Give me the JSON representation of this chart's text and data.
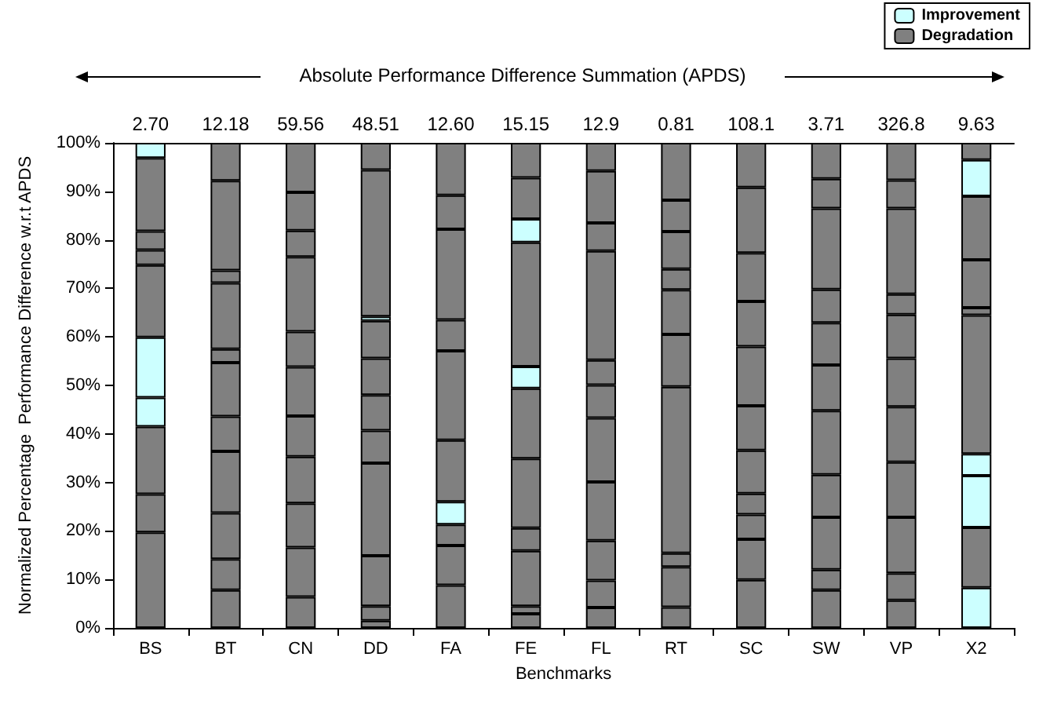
{
  "chart_data": {
    "type": "bar",
    "stacked": true,
    "xlabel": "Benchmarks",
    "ylabel": "Normalized Percentage  Performance Difference w.r.t APDS",
    "categories": [
      "BS",
      "BT",
      "CN",
      "DD",
      "FA",
      "FE",
      "FL",
      "RT",
      "SC",
      "SW",
      "VP",
      "X2"
    ],
    "ylim": [
      0,
      100
    ],
    "yticks": [
      {
        "value": 0,
        "label": "0%"
      },
      {
        "value": 10,
        "label": "10%"
      },
      {
        "value": 20,
        "label": "20%"
      },
      {
        "value": 30,
        "label": "30%"
      },
      {
        "value": 40,
        "label": "40%"
      },
      {
        "value": 50,
        "label": "50%"
      },
      {
        "value": 60,
        "label": "60%"
      },
      {
        "value": 70,
        "label": "70%"
      },
      {
        "value": 80,
        "label": "80%"
      },
      {
        "value": 90,
        "label": "90%"
      },
      {
        "value": 100,
        "label": "100%"
      }
    ],
    "grid": false,
    "legend": "top right",
    "annotations": [
      "Absolute Performance Difference Summation (APDS)",
      "2.70",
      "12.18",
      "59.56",
      "48.51",
      "12.60",
      "15.15",
      "12.9",
      "0.81",
      "108.1",
      "3.71",
      "326.8",
      "9.63"
    ],
    "series": [
      {
        "name": "Improvement",
        "color": "#ccffff",
        "values": [
          null,
          null,
          null,
          null,
          null,
          null,
          null,
          null,
          null,
          null,
          null,
          8.3
        ]
      },
      {
        "name": "Degradation",
        "color": "#808080",
        "values": [
          19.7,
          7.8,
          6.4,
          1.5,
          8.8,
          2.9,
          4.2,
          4.3,
          9.9,
          7.8,
          5.7,
          null
        ]
      },
      {
        "color": "#808080",
        "values": [
          7.9,
          6.4,
          10.2,
          3.0,
          8.2,
          1.6,
          5.6,
          8.3,
          8.4,
          4.2,
          5.6,
          12.4
        ]
      },
      {
        "color": "#808080",
        "values": [
          13.9,
          9.5,
          9.1,
          10.4,
          4.3,
          11.4,
          8.2,
          2.8,
          5.1,
          10.8,
          11.5,
          null
        ]
      },
      {
        "color": "#ccffff",
        "values": [
          null,
          null,
          null,
          null,
          null,
          null,
          null,
          null,
          null,
          null,
          null,
          10.7
        ]
      },
      {
        "color": "#808080",
        "values": [
          null,
          12.7,
          9.6,
          19.1,
          null,
          4.7,
          12.1,
          34.3,
          4.3,
          8.8,
          11.4,
          null
        ]
      },
      {
        "color": "#ccffff",
        "values": [
          6.0,
          null,
          null,
          null,
          4.7,
          null,
          null,
          null,
          null,
          null,
          null,
          4.5
        ]
      },
      {
        "color": "#808080",
        "values": [
          null,
          7.2,
          8.4,
          6.7,
          12.7,
          14.3,
          13.2,
          10.8,
          8.9,
          13.2,
          11.4,
          28.6
        ]
      },
      {
        "color": "#ccffff",
        "values": [
          12.4,
          null,
          null,
          null,
          null,
          null,
          null,
          null,
          null,
          null,
          null,
          null
        ]
      },
      {
        "color": "#808080",
        "values": [
          14.9,
          11.1,
          10.1,
          7.3,
          18.4,
          14.5,
          6.8,
          9.2,
          9.2,
          9.4,
          10.0,
          1.5
        ]
      },
      {
        "color": "#808080",
        "values": [
          3.1,
          2.8,
          7.3,
          7.6,
          6.4,
          null,
          5.1,
          4.3,
          12.2,
          8.7,
          9.0,
          9.9
        ]
      },
      {
        "color": "#ccffff",
        "values": [
          null,
          null,
          null,
          null,
          null,
          4.5,
          null,
          null,
          null,
          null,
          null,
          null
        ]
      },
      {
        "color": "#808080",
        "values": [
          3.9,
          13.6,
          15.4,
          7.7,
          18.7,
          25.6,
          22.5,
          7.7,
          9.3,
          6.9,
          4.2,
          13.1
        ]
      },
      {
        "color": "#808080",
        "values": [
          15.1,
          2.6,
          5.4,
          null,
          7.0,
          null,
          5.8,
          null,
          10.0,
          16.7,
          17.7,
          null
        ]
      },
      {
        "color": "#ccffff",
        "values": [
          null,
          null,
          null,
          0.9,
          null,
          4.8,
          null,
          null,
          null,
          null,
          null,
          7.5
        ]
      },
      {
        "color": "#808080",
        "values": [
          null,
          18.5,
          7.9,
          30.2,
          null,
          8.5,
          10.7,
          6.5,
          13.5,
          6.1,
          5.8,
          3.5
        ]
      },
      {
        "color": "#ccffff",
        "values": [
          3.1,
          null,
          null,
          null,
          null,
          null,
          null,
          null,
          null,
          null,
          null,
          null
        ]
      },
      {
        "color": "#808080",
        "values": [
          null,
          7.8,
          10.2,
          5.6,
          10.8,
          7.2,
          5.8,
          11.8,
          9.2,
          7.4,
          7.7,
          null
        ]
      }
    ]
  }
}
